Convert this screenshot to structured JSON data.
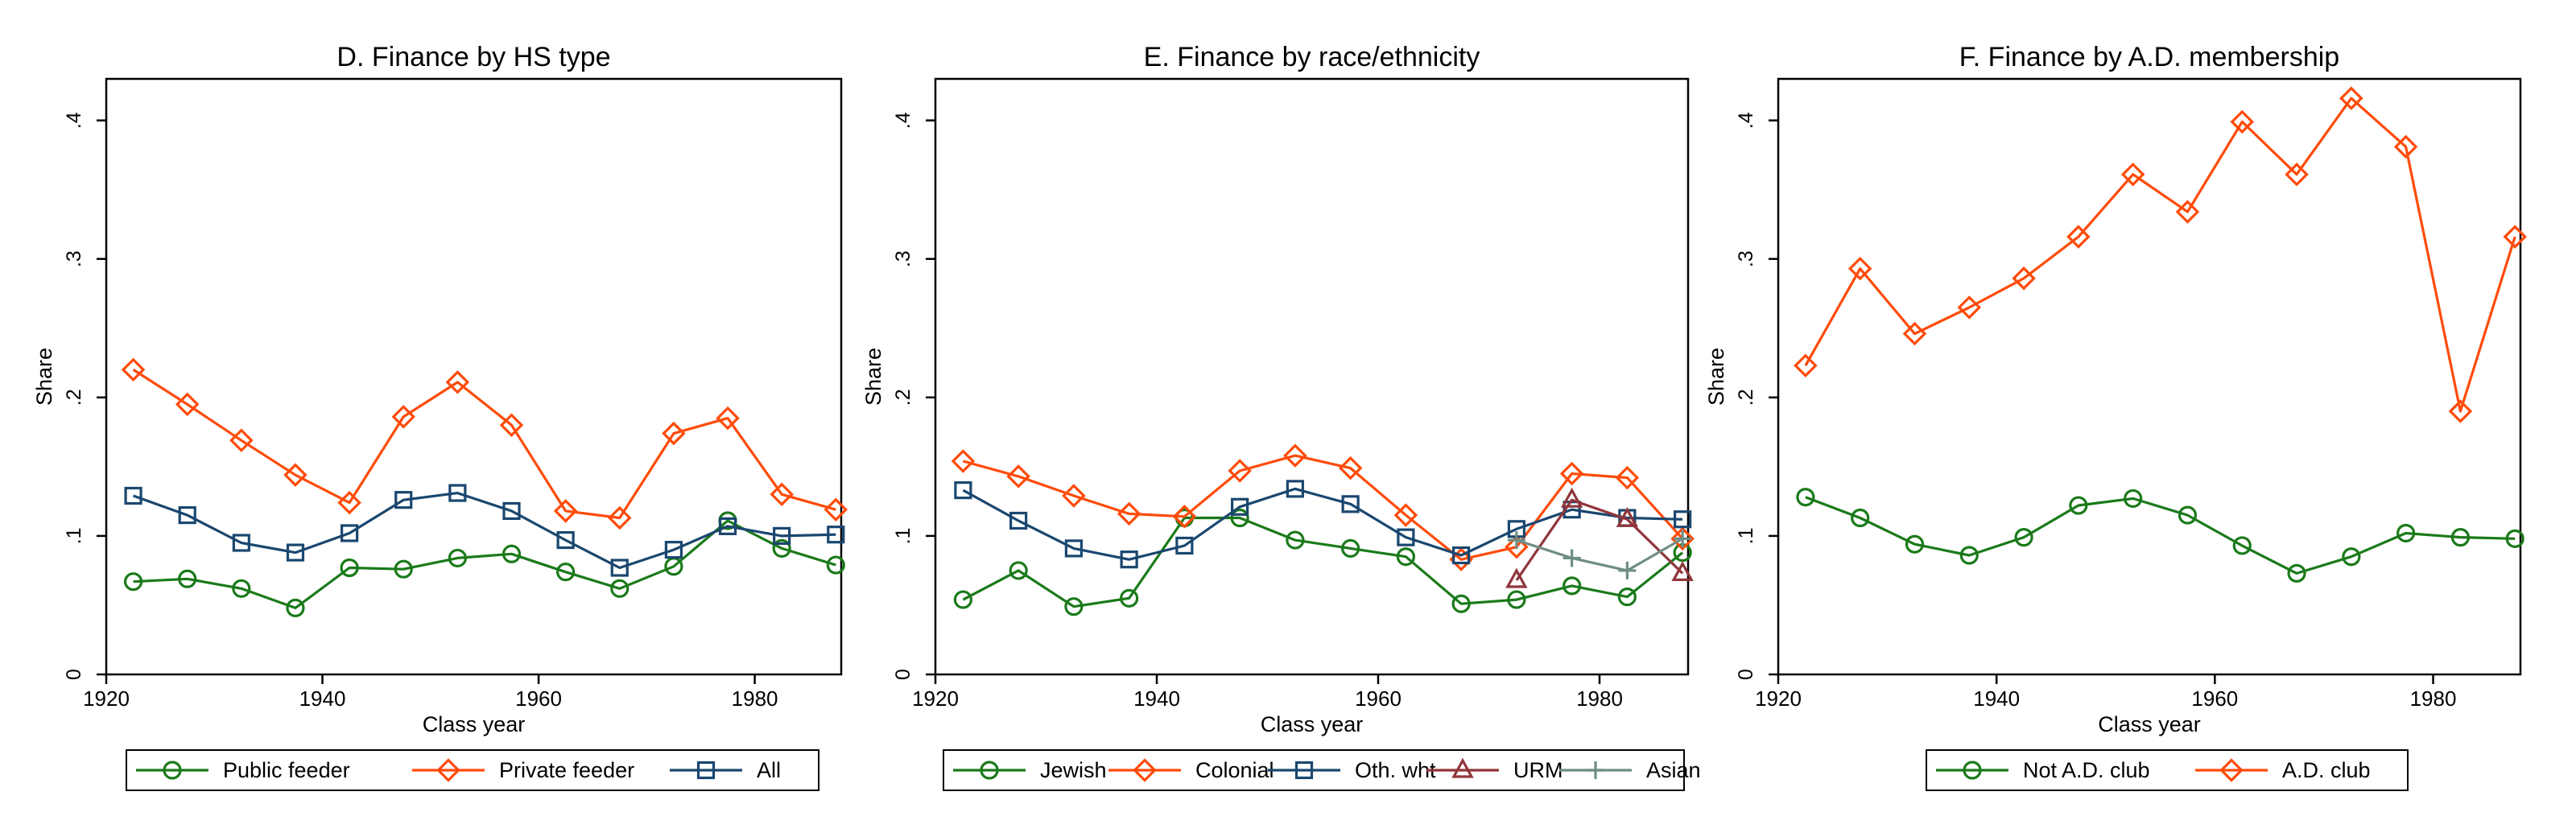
{
  "chart_data": [
    {
      "type": "line",
      "title": "D. Finance by HS type",
      "xlabel": "Class year",
      "ylabel": "Share",
      "xlim": [
        1920,
        1988
      ],
      "ylim": [
        0,
        0.43
      ],
      "xticks": [
        {
          "v": 1920,
          "label": "1920"
        },
        {
          "v": 1940,
          "label": "1940"
        },
        {
          "v": 1960,
          "label": "1960"
        },
        {
          "v": 1980,
          "label": "1980"
        }
      ],
      "yticks": [
        {
          "v": 0,
          "label": "0"
        },
        {
          "v": 0.1,
          "label": ".1"
        },
        {
          "v": 0.2,
          "label": ".2"
        },
        {
          "v": 0.3,
          "label": ".3"
        },
        {
          "v": 0.4,
          "label": ".4"
        }
      ],
      "x": [
        1922.5,
        1927.5,
        1932.5,
        1937.5,
        1942.5,
        1947.5,
        1952.5,
        1957.5,
        1962.5,
        1967.5,
        1972.5,
        1977.5,
        1982.5,
        1987.5
      ],
      "series": [
        {
          "name": "Public feeder",
          "color": "#1a7a1a",
          "marker": "circle",
          "values": [
            0.067,
            0.069,
            0.062,
            0.048,
            0.077,
            0.076,
            0.084,
            0.087,
            0.074,
            0.062,
            0.078,
            0.111,
            0.091,
            0.079
          ]
        },
        {
          "name": "Private feeder",
          "color": "#ff4b0a",
          "marker": "diamond",
          "values": [
            0.22,
            0.195,
            0.169,
            0.144,
            0.124,
            0.186,
            0.211,
            0.18,
            0.118,
            0.113,
            0.174,
            0.185,
            0.13,
            0.119
          ]
        },
        {
          "name": "All",
          "color": "#1a476f",
          "marker": "square",
          "values": [
            0.129,
            0.115,
            0.095,
            0.088,
            0.102,
            0.126,
            0.131,
            0.118,
            0.097,
            0.077,
            0.09,
            0.107,
            0.1,
            0.101
          ]
        }
      ]
    },
    {
      "type": "line",
      "title": "E. Finance by race/ethnicity",
      "xlabel": "Class year",
      "ylabel": "Share",
      "xlim": [
        1920,
        1988
      ],
      "ylim": [
        0,
        0.43
      ],
      "xticks": [
        {
          "v": 1920,
          "label": "1920"
        },
        {
          "v": 1940,
          "label": "1940"
        },
        {
          "v": 1960,
          "label": "1960"
        },
        {
          "v": 1980,
          "label": "1980"
        }
      ],
      "yticks": [
        {
          "v": 0,
          "label": "0"
        },
        {
          "v": 0.1,
          "label": ".1"
        },
        {
          "v": 0.2,
          "label": ".2"
        },
        {
          "v": 0.3,
          "label": ".3"
        },
        {
          "v": 0.4,
          "label": ".4"
        }
      ],
      "x": [
        1922.5,
        1927.5,
        1932.5,
        1937.5,
        1942.5,
        1947.5,
        1952.5,
        1957.5,
        1962.5,
        1967.5,
        1972.5,
        1977.5,
        1982.5,
        1987.5
      ],
      "series": [
        {
          "name": "Jewish",
          "color": "#1a7a1a",
          "marker": "circle",
          "values": [
            0.054,
            0.075,
            0.049,
            0.055,
            0.113,
            0.113,
            0.097,
            0.091,
            0.085,
            0.051,
            0.054,
            0.064,
            0.056,
            0.088
          ]
        },
        {
          "name": "Colonial",
          "color": "#ff4b0a",
          "marker": "diamond",
          "values": [
            0.154,
            0.143,
            0.129,
            0.116,
            0.114,
            0.147,
            0.158,
            0.149,
            0.115,
            0.083,
            0.092,
            0.145,
            0.142,
            0.098
          ]
        },
        {
          "name": "Oth. wht",
          "color": "#1a476f",
          "marker": "square",
          "values": [
            0.133,
            0.111,
            0.091,
            0.083,
            0.093,
            0.121,
            0.134,
            0.123,
            0.099,
            0.086,
            0.105,
            0.119,
            0.113,
            0.112
          ]
        },
        {
          "name": "URM",
          "color": "#90353b",
          "marker": "triangle",
          "values": [
            null,
            null,
            null,
            null,
            null,
            null,
            null,
            null,
            null,
            null,
            0.068,
            0.126,
            0.112,
            0.073
          ]
        },
        {
          "name": "Asian",
          "color": "#6e8e84",
          "marker": "plus",
          "values": [
            null,
            null,
            null,
            null,
            null,
            null,
            null,
            null,
            null,
            null,
            0.097,
            0.084,
            0.075,
            0.098
          ]
        }
      ]
    },
    {
      "type": "line",
      "title": "F. Finance by A.D. membership",
      "xlabel": "Class year",
      "ylabel": "Share",
      "xlim": [
        1920,
        1988
      ],
      "ylim": [
        0,
        0.43
      ],
      "xticks": [
        {
          "v": 1920,
          "label": "1920"
        },
        {
          "v": 1940,
          "label": "1940"
        },
        {
          "v": 1960,
          "label": "1960"
        },
        {
          "v": 1980,
          "label": "1980"
        }
      ],
      "yticks": [
        {
          "v": 0,
          "label": "0"
        },
        {
          "v": 0.1,
          "label": ".1"
        },
        {
          "v": 0.2,
          "label": ".2"
        },
        {
          "v": 0.3,
          "label": ".3"
        },
        {
          "v": 0.4,
          "label": ".4"
        }
      ],
      "x": [
        1922.5,
        1927.5,
        1932.5,
        1937.5,
        1942.5,
        1947.5,
        1952.5,
        1957.5,
        1962.5,
        1967.5,
        1972.5,
        1977.5,
        1982.5,
        1987.5
      ],
      "series": [
        {
          "name": "Not A.D. club",
          "color": "#1a7a1a",
          "marker": "circle",
          "values": [
            0.128,
            0.113,
            0.094,
            0.086,
            0.099,
            0.122,
            0.127,
            0.115,
            0.093,
            0.073,
            0.085,
            0.102,
            0.099,
            0.098
          ]
        },
        {
          "name": "A.D. club",
          "color": "#ff4b0a",
          "marker": "diamond",
          "values": [
            0.223,
            0.293,
            0.246,
            0.265,
            0.286,
            0.316,
            0.361,
            0.334,
            0.399,
            0.361,
            0.416,
            0.381,
            0.19,
            0.316
          ]
        }
      ]
    }
  ]
}
